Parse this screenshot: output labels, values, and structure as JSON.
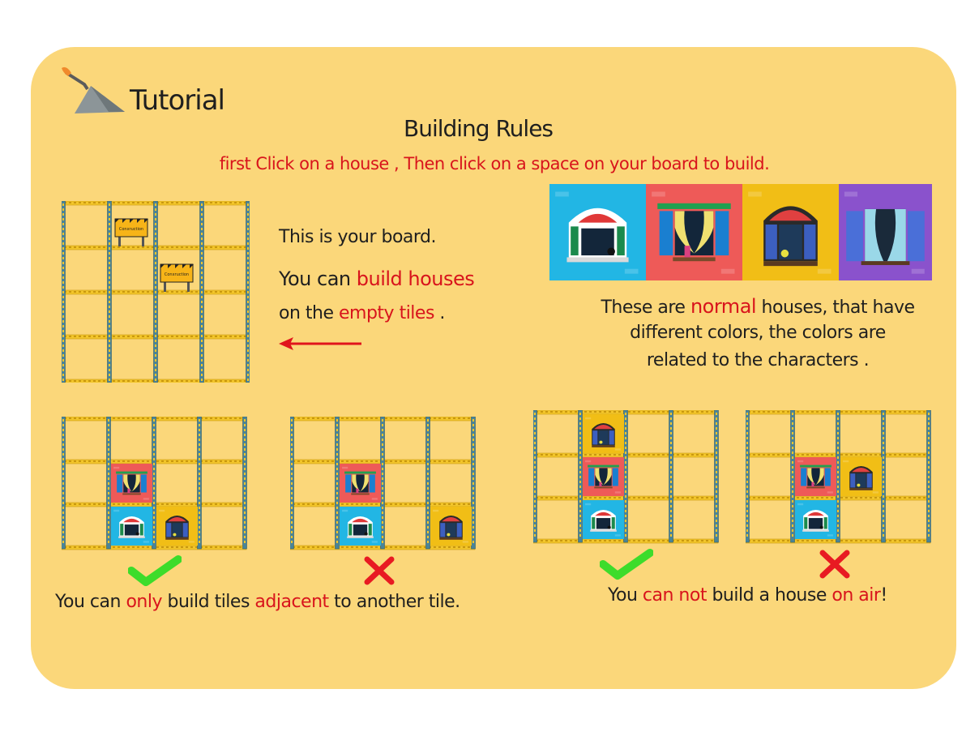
{
  "header": {
    "title": "Tutorial",
    "icon": "trowel-icon"
  },
  "section_title": "Building Rules",
  "instruction": "first Click on a house , Then click on a space on your board to build.",
  "board_intro": {
    "line1": "This is your board.",
    "line2_a": "You can ",
    "line2_b": "build houses",
    "line3_a": "on the ",
    "line3_b": "empty tiles",
    "line3_c": " ."
  },
  "construction_sign_label": "Conxruction",
  "houses_desc": {
    "l1_a": "These are ",
    "l1_b": "normal",
    "l1_c": " houses, that have",
    "l2": "different colors, the colors are",
    "l3": "related to the characters ."
  },
  "house_colors": {
    "blue": "#22b6e4",
    "red": "#ee5a58",
    "yellow": "#f1be16",
    "purple": "#8a52cc"
  },
  "rule_adjacent": {
    "a": "You can ",
    "b": "only",
    "c": " build tiles ",
    "d": "adjacent",
    "e": " to another tile."
  },
  "rule_air": {
    "a": "You ",
    "b": "can not",
    "c": " build a house ",
    "d": "on air",
    "e": "!"
  },
  "marks": {
    "ok": "check-mark-icon",
    "bad": "cross-mark-icon"
  }
}
